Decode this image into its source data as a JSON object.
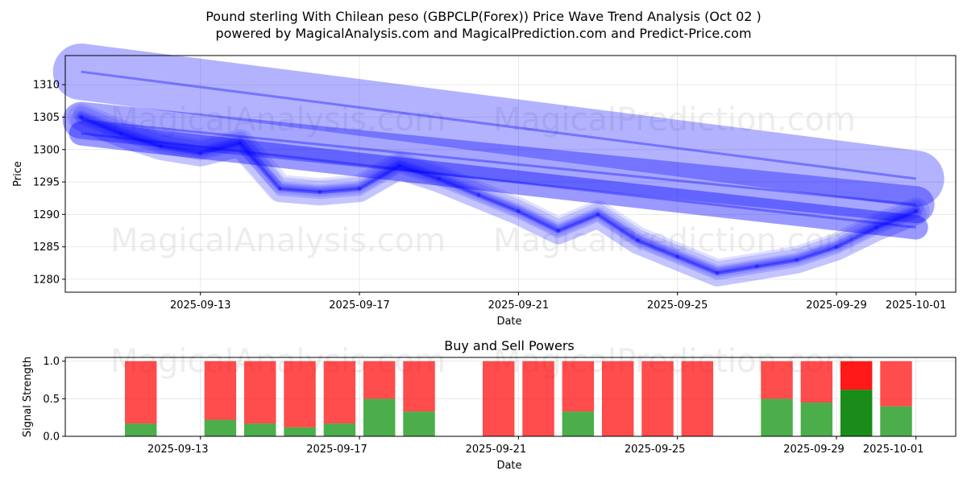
{
  "title": {
    "line1": "Pound sterling With Chilean peso (GBPCLP(Forex)) Price Wave Trend Analysis (Oct 02 )",
    "line2": "powered by MagicalAnalysis.com and MagicalPrediction.com and Predict-Price.com"
  },
  "watermarks": [
    "MagicalAnalysis.com",
    "MagicalPrediction.com"
  ],
  "colors": {
    "wave": "#0000ff",
    "buy": "#2ca02c",
    "sell": "#ff0000",
    "buy_strong": "#008000",
    "sell_strong": "#ff0000"
  },
  "chart_data": [
    {
      "type": "line",
      "title": "",
      "xlabel": "Date",
      "ylabel": "Price",
      "ylim": [
        1278,
        1314.5
      ],
      "xlim": [
        "2025-09-09.6",
        "2025-10-02.0"
      ],
      "yticks": [
        1280,
        1285,
        1290,
        1295,
        1300,
        1305,
        1310
      ],
      "xticks": [
        "2025-09-13",
        "2025-09-17",
        "2025-09-21",
        "2025-09-25",
        "2025-09-29",
        "2025-10-01"
      ],
      "grid": true,
      "series": [
        {
          "name": "price",
          "x": [
            "2025-09-10",
            "2025-09-11",
            "2025-09-12",
            "2025-09-13",
            "2025-09-14",
            "2025-09-15",
            "2025-09-16",
            "2025-09-17",
            "2025-09-18",
            "2025-09-19",
            "2025-09-20",
            "2025-09-21",
            "2025-09-22",
            "2025-09-23",
            "2025-09-24",
            "2025-09-25",
            "2025-09-26",
            "2025-09-27",
            "2025-09-28",
            "2025-09-29",
            "2025-09-30",
            "2025-10-01"
          ],
          "values": [
            1305.0,
            1302.5,
            1300.5,
            1299.5,
            1301.0,
            1294.0,
            1293.5,
            1294.0,
            1297.5,
            1295.5,
            1293.0,
            1290.5,
            1287.5,
            1290.0,
            1286.0,
            1283.5,
            1281.0,
            1282.0,
            1283.0,
            1285.0,
            1288.0,
            1290.5
          ]
        },
        {
          "name": "trend-upper",
          "x": [
            "2025-09-10",
            "2025-10-01"
          ],
          "values": [
            1312.0,
            1295.5
          ]
        },
        {
          "name": "trend-mid",
          "x": [
            "2025-09-10",
            "2025-10-01"
          ],
          "values": [
            1304.5,
            1291.5
          ]
        },
        {
          "name": "trend-lower",
          "x": [
            "2025-09-10",
            "2025-10-01"
          ],
          "values": [
            1302.5,
            1288.0
          ]
        }
      ]
    },
    {
      "type": "bar",
      "title": "Buy and Sell Powers",
      "xlabel": "Date",
      "ylabel": "Signal Strength",
      "ylim": [
        0,
        1.05
      ],
      "yticks": [
        0.0,
        0.5,
        1.0
      ],
      "xticks": [
        "2025-09-13",
        "2025-09-17",
        "2025-09-21",
        "2025-09-25",
        "2025-09-29",
        "2025-10-01"
      ],
      "categories": [
        "2025-09-12",
        "2025-09-14",
        "2025-09-15",
        "2025-09-16",
        "2025-09-17",
        "2025-09-18",
        "2025-09-19",
        "2025-09-21",
        "2025-09-22",
        "2025-09-23",
        "2025-09-24",
        "2025-09-25",
        "2025-09-26",
        "2025-09-28",
        "2025-09-29",
        "2025-09-30",
        "2025-10-01"
      ],
      "series": [
        {
          "name": "buy",
          "values": [
            0.17,
            0.22,
            0.17,
            0.12,
            0.17,
            0.5,
            0.33,
            0.0,
            0.0,
            0.33,
            0.0,
            0.0,
            0.0,
            0.5,
            0.45,
            0.62,
            0.4
          ]
        },
        {
          "name": "sell",
          "values": [
            0.83,
            0.78,
            0.83,
            0.88,
            0.83,
            0.5,
            0.67,
            1.0,
            1.0,
            0.67,
            1.0,
            1.0,
            1.0,
            0.5,
            0.55,
            0.38,
            0.6
          ]
        }
      ],
      "strong": [
        false,
        false,
        false,
        false,
        false,
        false,
        false,
        false,
        false,
        false,
        false,
        false,
        false,
        false,
        false,
        true,
        false
      ]
    }
  ]
}
